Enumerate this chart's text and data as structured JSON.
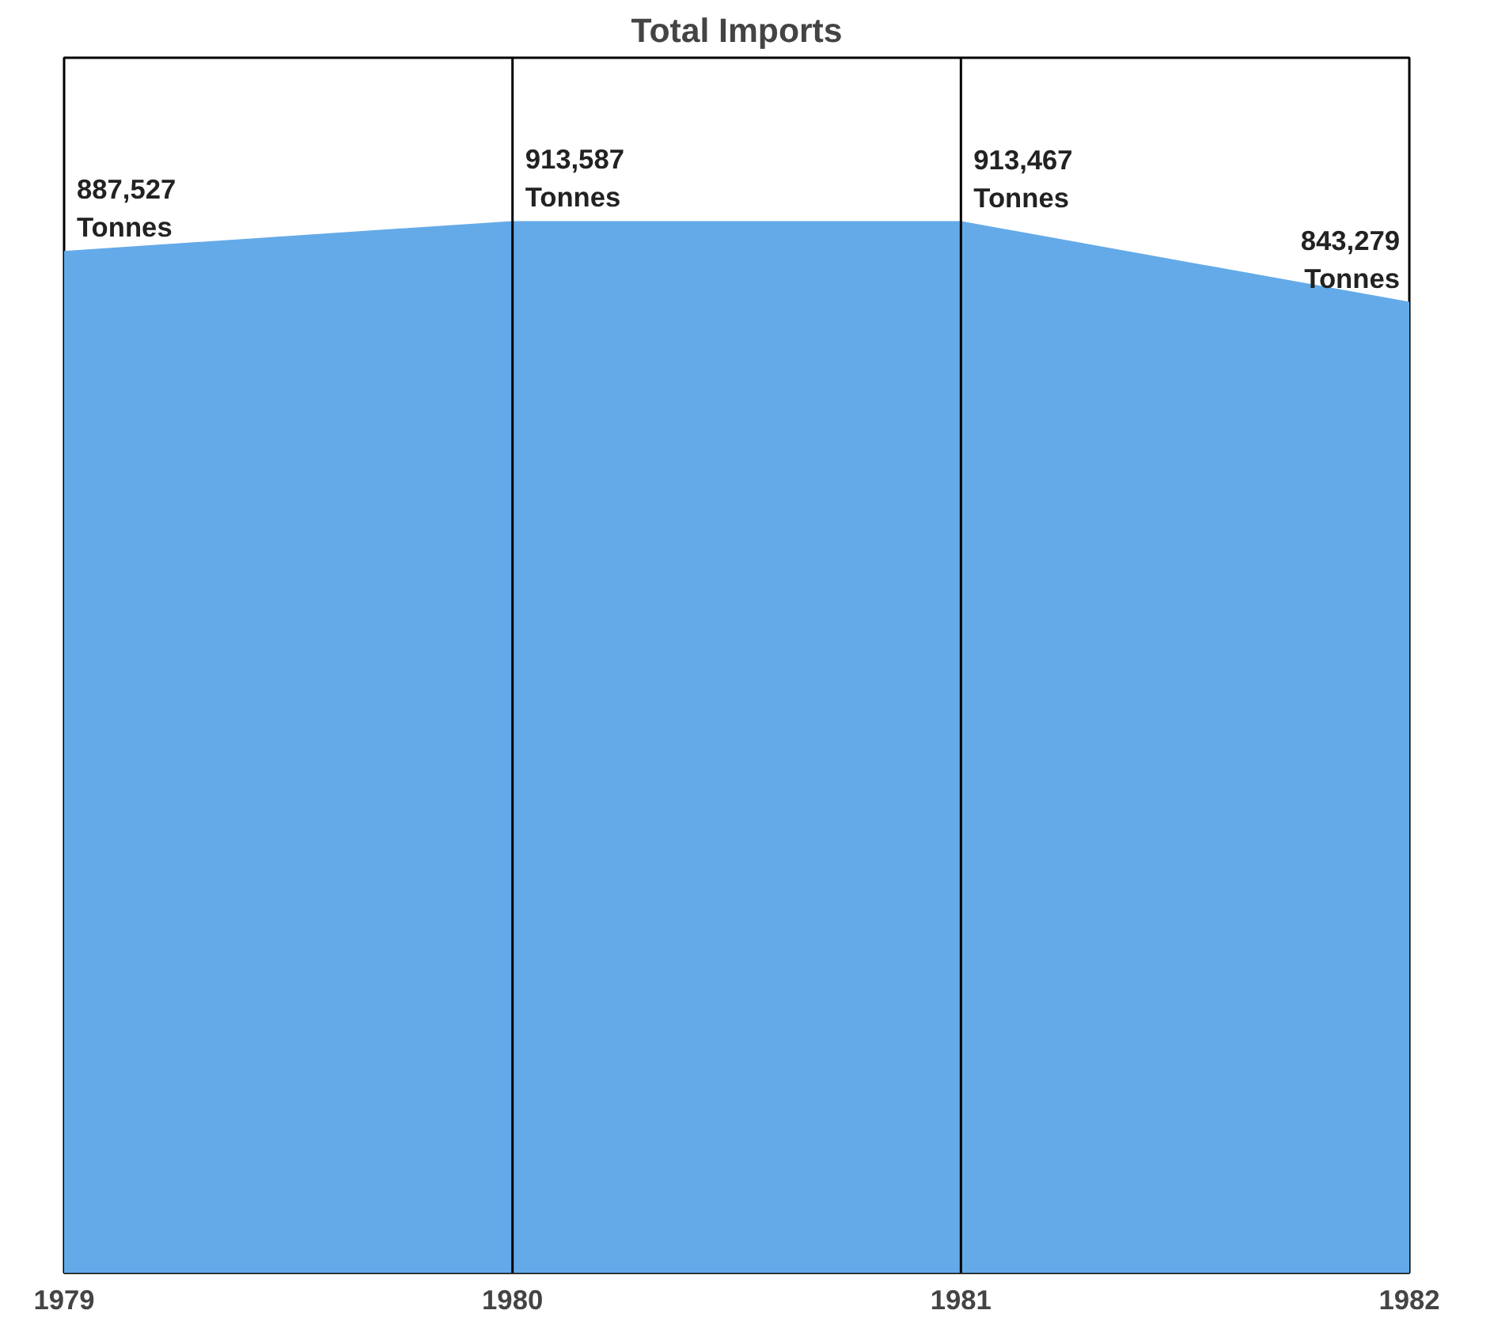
{
  "chart_data": {
    "type": "area",
    "title": "Total Imports",
    "categories": [
      "1979",
      "1980",
      "1981",
      "1982"
    ],
    "series": [
      {
        "color": "#64aae8",
        "values": [
          887527,
          913587,
          913467,
          843279
        ],
        "value_labels": [
          "887,527\nTonnes",
          "913,587\nTonnes",
          "913,467\nTonnes",
          "843,279\nTonnes"
        ]
      }
    ],
    "ylim": [
      0,
      1057000
    ],
    "tick_labels": "x",
    "grid": false,
    "ref_lines": [
      {
        "axis": "x",
        "value": "1980",
        "color": "#000000"
      },
      {
        "axis": "x",
        "value": "1981",
        "color": "#000000"
      }
    ]
  }
}
